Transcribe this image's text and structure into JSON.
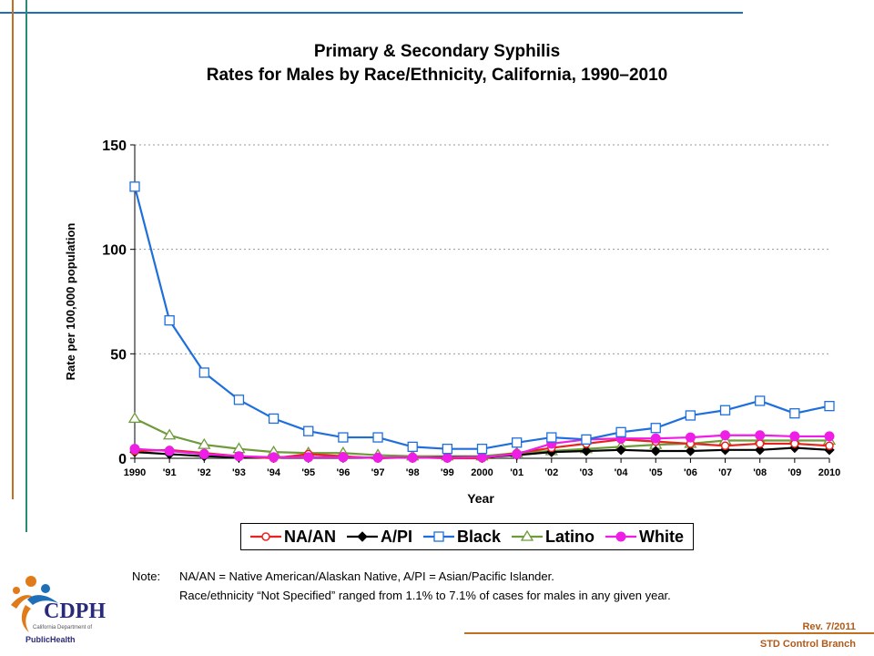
{
  "chart_data": {
    "type": "line",
    "title": [
      "Primary & Secondary Syphilis",
      "Rates for Males by Race/Ethnicity, California, 1990–2010"
    ],
    "xlabel": "Year",
    "ylabel": "Rate per 100,000 population",
    "ylim": [
      0,
      150
    ],
    "yticks": [
      0,
      50,
      100,
      150
    ],
    "grid": true,
    "legend_position": "bottom",
    "categories": [
      "1990",
      "'91",
      "'92",
      "'93",
      "'94",
      "'95",
      "'96",
      "'97",
      "'98",
      "'99",
      "2000",
      "'01",
      "'02",
      "'03",
      "'04",
      "'05",
      "'06",
      "'07",
      "'08",
      "'09",
      "2010"
    ],
    "series": [
      {
        "name": "NA/AN",
        "color": "#e8231f",
        "marker": "circle-open",
        "values": [
          3.5,
          4.0,
          2.5,
          1.0,
          0.0,
          2.0,
          1.0,
          0.0,
          0.5,
          0.0,
          0.0,
          2.5,
          5.0,
          7.0,
          9.0,
          8.0,
          7.0,
          6.0,
          7.0,
          7.0,
          6.0
        ]
      },
      {
        "name": "A/PI",
        "color": "#000000",
        "marker": "diamond-filled",
        "values": [
          3.0,
          2.0,
          1.0,
          0.5,
          0.5,
          0.5,
          0.5,
          0.3,
          0.3,
          0.5,
          0.5,
          1.5,
          3.0,
          3.5,
          4.0,
          3.5,
          3.5,
          4.0,
          4.0,
          5.0,
          4.0
        ]
      },
      {
        "name": "Black",
        "color": "#1e6fdc",
        "marker": "square-open",
        "values": [
          130.0,
          66.0,
          41.0,
          28.0,
          19.0,
          13.0,
          10.0,
          10.0,
          5.5,
          4.5,
          4.5,
          7.5,
          10.0,
          9.0,
          12.5,
          14.5,
          20.5,
          23.0,
          27.5,
          21.5,
          25.0
        ]
      },
      {
        "name": "Latino",
        "color": "#6e9a3a",
        "marker": "triangle-open",
        "values": [
          19.0,
          11.0,
          6.5,
          4.5,
          3.0,
          2.5,
          2.5,
          1.5,
          1.0,
          1.0,
          1.0,
          2.5,
          3.5,
          4.5,
          5.5,
          6.5,
          7.0,
          8.5,
          8.5,
          8.5,
          8.5
        ]
      },
      {
        "name": "White",
        "color": "#ee1ee6",
        "marker": "circle-filled",
        "values": [
          4.5,
          3.5,
          2.0,
          1.0,
          0.5,
          0.5,
          0.5,
          0.3,
          0.3,
          0.3,
          0.5,
          2.0,
          7.0,
          9.0,
          9.5,
          9.5,
          10.0,
          11.0,
          11.0,
          10.5,
          10.5
        ]
      }
    ]
  },
  "notes": {
    "label": "Note:",
    "line1": "NA/AN = Native American/Alaskan Native, A/PI = Asian/Pacific Islander.",
    "line2": "Race/ethnicity “Not Specified” ranged from 1.1% to 7.1% of cases for males in any given year."
  },
  "logo": {
    "name": "CDPH",
    "subtitle": "California Department of",
    "tagline": "PublicHealth"
  },
  "footer": {
    "revision": "Rev. 7/2011",
    "branch": "STD Control Branch"
  }
}
